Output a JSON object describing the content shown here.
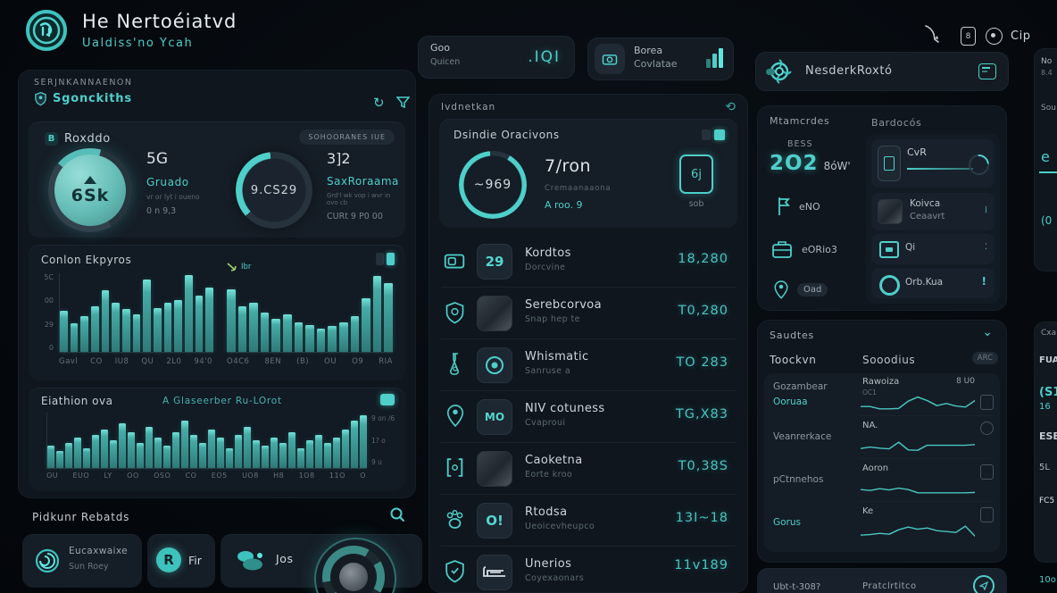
{
  "accent": "#4ecfca",
  "header": {
    "title": "He Nertoéiatvd",
    "subtitle": "Ualdiss'no Ycah",
    "stat1": {
      "label": "Goo",
      "sublabel": "Quicen",
      "value": ".IQI"
    },
    "stat2": {
      "line1": "Borea",
      "line2": "Covlatae"
    },
    "menu_label": "Cip",
    "search_text": "NesderkRoxtó"
  },
  "left": {
    "section_label": "SERJNKANNAENON",
    "section_title": "Sgonckiths",
    "overview": {
      "icon_letter": "B",
      "title": "Roxddo",
      "badge": "SOHOORANES IUE",
      "gauge1": {
        "value": "6Sk",
        "stat": "5G",
        "name": "Gruado",
        "detail": "vr or lyt i oueno",
        "sub": "0 n 9,3"
      },
      "gauge2": {
        "value": "9.CS29",
        "stat": "3]2",
        "name": "SaxRoraama",
        "detail": "Grd'l wk vop i wvr in ovo cb",
        "sub": "CURt 9 P0 00"
      }
    },
    "chart_card": {
      "title": "Conlon Ekpyros",
      "legend": "Ibr"
    },
    "timeline_card": {
      "title": "Eiathion ova",
      "subtitle": "A Glaseerber Ru-LOrot",
      "side_labels": [
        "9 on /6",
        "1? o",
        "9 u"
      ]
    },
    "results": {
      "title": "Pidkunr Rebatds",
      "cards": [
        {
          "title": "Eucaxwaixe",
          "sub": "Sun Roey"
        },
        {
          "title": "Fir",
          "sub": ""
        },
        {
          "title": "Jos",
          "sub": ""
        }
      ]
    }
  },
  "middle": {
    "section_label": "Ivdnetkan",
    "summary": {
      "title": "Dsindie Oracivons",
      "gauge_value": "~969",
      "headline": "7/ron",
      "sub": "Cremaanaaona",
      "link": "A roo. 9",
      "side_label": "6j",
      "side_value": "sob"
    },
    "rows": [
      {
        "title": "Kordtos",
        "sub": "Dorcvine",
        "value": "18,280",
        "tile": "29"
      },
      {
        "title": "Serebcorvoa",
        "sub": "Snap hep te",
        "value": "T0,280",
        "tile": ""
      },
      {
        "title": "Whismatic",
        "sub": "Sanruse a",
        "value": "TO 283",
        "tile": ""
      },
      {
        "title": "NIV cotuness",
        "sub": "Cvaproui",
        "value": "TG,X83",
        "tile": "MO"
      },
      {
        "title": "Caoketna",
        "sub": "Eorte kroo",
        "value": "T0,38S",
        "tile": ""
      },
      {
        "title": "Rtodsa",
        "sub": "Ueoicevheupco",
        "value": "13I~18",
        "tile": "O!"
      },
      {
        "title": "Unerios",
        "sub": "Coyexaonars",
        "value": "11v189",
        "tile": ""
      }
    ]
  },
  "right": {
    "params": {
      "col1": "Mtamcrdes",
      "col2": "Bardocós",
      "stat_label": "BESS",
      "stat_value": "2O2",
      "stat_unit": "8óW'",
      "items": [
        {
          "label": "eNO"
        },
        {
          "label": "eORio3"
        },
        {
          "label": "Oad"
        }
      ],
      "cards": [
        {
          "label": "CvR",
          "sub": ""
        },
        {
          "label": "Koivca",
          "sub": "Ceaavrt"
        },
        {
          "label": "Qi",
          "sub": ""
        },
        {
          "label": "Orb.Kua",
          "sub": "",
          "mark": "!"
        }
      ]
    },
    "saudtes": {
      "title": "Saudtes",
      "col1": "Toockvn",
      "col2": "Sooodius",
      "col3": "ARC",
      "tracks": [
        {
          "name": "Gozambear",
          "name2": "Ooruaa",
          "label": "Rawoiza",
          "sub": "OC1",
          "value": "8 U0"
        },
        {
          "name": "Veanrerkace",
          "name2": "",
          "label": "NA.",
          "sub": "",
          "value": ""
        },
        {
          "name": "pCtnnehos",
          "name2": "",
          "label": "Aoron",
          "sub": "",
          "value": ""
        },
        {
          "name": "Gorus",
          "name2": "",
          "label": "Ke",
          "sub": "",
          "value": ""
        }
      ]
    },
    "footer": {
      "label1": "Ubt-t-308?",
      "label2": "Pratclrtitco"
    }
  },
  "rightedge": {
    "fragments": [
      "No",
      "8.4",
      "Sou",
      "e",
      "(0",
      "Cxa",
      "FUAG",
      "(S1",
      "16",
      "ESE",
      "5L",
      "FC5",
      "10o"
    ]
  },
  "chart_data": [
    {
      "id": "usage-left",
      "type": "bar",
      "x": [
        "Gavl",
        "CO",
        "IU8",
        "QU",
        "2L0",
        "94'0"
      ],
      "values": [
        52,
        36,
        46,
        58,
        78,
        62,
        55,
        48,
        92,
        56,
        62,
        66,
        98,
        72,
        82
      ],
      "ylabels": [
        "5C",
        "00",
        "29",
        "0"
      ]
    },
    {
      "id": "usage-right",
      "type": "bar",
      "x": [
        "O4C6",
        "8EN",
        "(B)",
        "OU",
        "O9",
        "RIA"
      ],
      "values": [
        80,
        58,
        62,
        50,
        42,
        48,
        38,
        34,
        30,
        33,
        38,
        45,
        68,
        97,
        88
      ]
    },
    {
      "id": "timeline",
      "type": "bar",
      "x": [
        "OU",
        "EUO",
        "LY",
        "OO",
        "OSO",
        "CO",
        "EO5",
        "UO8",
        "H8",
        "1O8",
        "11O",
        "O"
      ],
      "values": [
        40,
        30,
        45,
        55,
        35,
        60,
        70,
        50,
        80,
        65,
        45,
        75,
        55,
        40,
        65,
        85,
        60,
        45,
        70,
        55,
        35,
        60,
        75,
        50,
        40,
        55,
        45,
        65,
        35,
        50,
        60,
        45,
        55,
        70,
        85,
        95
      ],
      "ylabels": [
        "Loo",
        "50,",
        "Eds",
        "0"
      ]
    },
    {
      "id": "spark-rawoiza",
      "type": "line",
      "points": [
        25,
        25,
        12,
        12,
        14,
        55,
        78,
        58,
        30,
        42,
        28,
        22,
        58
      ]
    },
    {
      "id": "spark-na",
      "type": "line",
      "points": [
        20,
        28,
        22,
        18,
        55,
        12,
        10,
        38,
        38,
        38,
        38,
        38,
        42
      ]
    },
    {
      "id": "spark-aoron",
      "type": "line",
      "points": [
        30,
        25,
        35,
        28,
        38,
        30,
        12,
        12,
        12,
        12,
        12,
        12,
        14
      ]
    },
    {
      "id": "spark-ke",
      "type": "line",
      "points": [
        15,
        18,
        25,
        20,
        45,
        60,
        48,
        55,
        40,
        35,
        30,
        65,
        10
      ]
    }
  ]
}
